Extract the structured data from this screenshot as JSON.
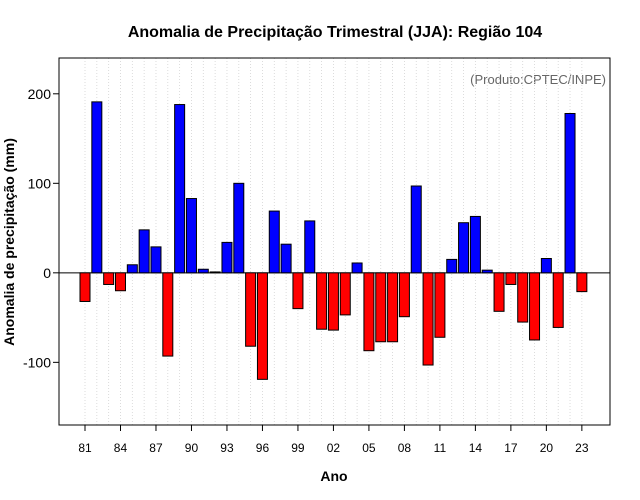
{
  "chart_data": {
    "type": "bar",
    "title": "Anomalia de Precipitação Trimestral (JJA): Região 104",
    "xlabel": "Ano",
    "ylabel": "Anomalia de precipitação (mm)",
    "credit": "(Produto:CPTEC/INPE)",
    "ylim": [
      -170,
      240
    ],
    "yticks": [
      -100,
      0,
      100,
      200
    ],
    "xtick_labels": [
      "81",
      "84",
      "87",
      "90",
      "93",
      "96",
      "99",
      "02",
      "05",
      "08",
      "11",
      "14",
      "17",
      "20",
      "23"
    ],
    "xtick_every": 3,
    "categories": [
      "1981",
      "1982",
      "1983",
      "1984",
      "1985",
      "1986",
      "1987",
      "1988",
      "1989",
      "1990",
      "1991",
      "1992",
      "1993",
      "1994",
      "1995",
      "1996",
      "1997",
      "1998",
      "1999",
      "2000",
      "2001",
      "2002",
      "2003",
      "2004",
      "2005",
      "2006",
      "2007",
      "2008",
      "2009",
      "2010",
      "2011",
      "2012",
      "2013",
      "2014",
      "2015",
      "2016",
      "2017",
      "2018",
      "2019",
      "2020",
      "2021",
      "2022",
      "2023"
    ],
    "values": [
      -32,
      191,
      -13,
      -20,
      9,
      48,
      29,
      -93,
      188,
      83,
      4,
      1,
      34,
      100,
      -82,
      -119,
      69,
      32,
      -40,
      58,
      -63,
      -64,
      -47,
      11,
      -87,
      -77,
      -77,
      -49,
      97,
      -103,
      -72,
      15,
      56,
      63,
      3,
      -43,
      -13,
      -55,
      -75,
      16,
      -61,
      178,
      -21
    ],
    "colors": {
      "positive": "#0000ff",
      "negative": "#ff0000"
    },
    "grid": "vertical dotted"
  }
}
